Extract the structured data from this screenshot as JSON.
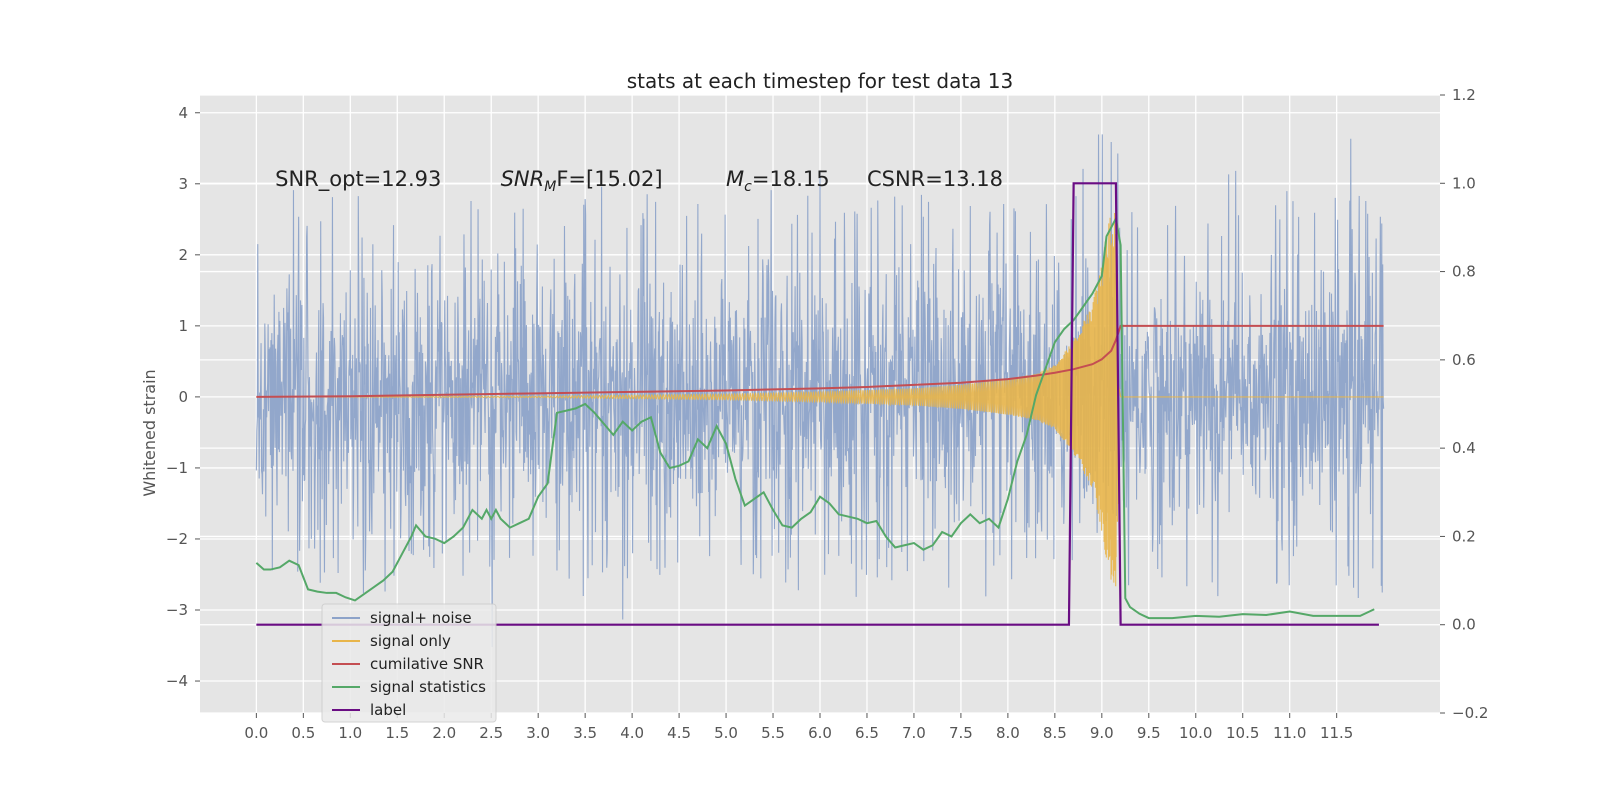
{
  "chart_data": {
    "type": "line",
    "title": "stats at each timestep for test data 13",
    "xlabel": "",
    "ylabel": "Whitened strain",
    "xlim": [
      -0.6,
      12.6
    ],
    "ylim": [
      -4.45,
      4.25
    ],
    "y2lim": [
      -0.2,
      1.2
    ],
    "x_ticks": [
      "0.0",
      "0.5",
      "1.0",
      "1.5",
      "2.0",
      "2.5",
      "3.0",
      "3.5",
      "4.0",
      "4.5",
      "5.0",
      "5.5",
      "6.0",
      "6.5",
      "7.0",
      "7.5",
      "8.0",
      "8.5",
      "9.0",
      "9.5",
      "10.0",
      "10.5",
      "11.0",
      "11.5"
    ],
    "y_ticks": [
      "−4",
      "−3",
      "−2",
      "−1",
      "0",
      "1",
      "2",
      "3",
      "4"
    ],
    "y2_ticks": [
      "−0.2",
      "0.0",
      "0.2",
      "0.4",
      "0.6",
      "0.8",
      "1.0",
      "1.2"
    ],
    "grid": true,
    "legend_position": "lower-left",
    "annotations": [
      {
        "text": "SNR_opt=12.93",
        "x": 0.2,
        "y": 3.0
      },
      {
        "base": "SNR",
        "sub": "M",
        "rest": "F=[15.02]",
        "x": 2.6,
        "y": 3.0
      },
      {
        "base": "M",
        "sub": "c",
        "rest": "=18.15",
        "x": 5.0,
        "y": 3.0
      },
      {
        "text": "CSNR=13.18",
        "x": 6.5,
        "y": 3.0
      }
    ],
    "series": [
      {
        "name": "signal+ noise",
        "axis": "left",
        "color": "#8da3c9",
        "x_range": [
          0.0,
          12.0
        ],
        "envelope_upper": [
          2.3,
          2.6,
          2.5,
          2.3,
          2.5,
          2.4,
          2.5,
          2.6,
          2.5,
          2.5,
          2.4,
          2.7,
          2.5,
          2.6,
          2.5,
          2.4,
          2.5,
          2.6,
          3.3,
          2.6,
          2.5,
          2.8,
          2.6,
          2.5,
          2.3
        ],
        "envelope_lower": [
          -2.4,
          -2.5,
          -2.6,
          -2.4,
          -2.3,
          -2.5,
          -2.4,
          -2.6,
          -2.4,
          -2.5,
          -2.4,
          -2.3,
          -2.4,
          -2.5,
          -2.3,
          -2.4,
          -2.5,
          -2.4,
          -3.3,
          -2.5,
          -2.6,
          -2.5,
          -2.4,
          -2.5,
          -2.4
        ],
        "noise_std": 1.0
      },
      {
        "name": "signal only",
        "axis": "left",
        "color": "#e8b54a",
        "x": [
          0.0,
          3.0,
          5.0,
          6.0,
          7.0,
          7.5,
          8.0,
          8.3,
          8.5,
          8.7,
          8.9,
          9.0,
          9.05,
          9.1,
          9.15,
          9.2,
          12.0
        ],
        "amplitude": [
          0.0,
          0.01,
          0.04,
          0.07,
          0.12,
          0.17,
          0.25,
          0.33,
          0.45,
          0.8,
          1.3,
          1.9,
          2.3,
          2.6,
          2.7,
          0.0,
          0.0
        ]
      },
      {
        "name": "cumilative SNR",
        "axis": "left",
        "color": "#c44e52",
        "x": [
          0.0,
          1.0,
          2.0,
          3.0,
          4.0,
          5.0,
          6.0,
          6.5,
          7.0,
          7.5,
          8.0,
          8.3,
          8.5,
          8.7,
          8.9,
          9.0,
          9.1,
          9.15,
          9.2,
          12.0
        ],
        "y": [
          0.0,
          0.01,
          0.03,
          0.05,
          0.07,
          0.09,
          0.12,
          0.14,
          0.17,
          0.2,
          0.25,
          0.3,
          0.34,
          0.39,
          0.46,
          0.53,
          0.65,
          0.8,
          1.0,
          1.0
        ]
      },
      {
        "name": "signal statistics",
        "axis": "right",
        "color": "#55a868",
        "x": [
          0.0,
          0.08,
          0.15,
          0.25,
          0.35,
          0.45,
          0.55,
          0.65,
          0.75,
          0.85,
          0.95,
          1.05,
          1.15,
          1.25,
          1.35,
          1.45,
          1.55,
          1.65,
          1.7,
          1.8,
          1.9,
          2.0,
          2.1,
          2.2,
          2.3,
          2.4,
          2.45,
          2.5,
          2.55,
          2.6,
          2.7,
          2.8,
          2.9,
          3.0,
          3.1,
          3.2,
          3.3,
          3.4,
          3.5,
          3.6,
          3.7,
          3.8,
          3.9,
          4.0,
          4.1,
          4.2,
          4.3,
          4.4,
          4.5,
          4.6,
          4.7,
          4.8,
          4.9,
          5.0,
          5.1,
          5.2,
          5.3,
          5.4,
          5.5,
          5.6,
          5.7,
          5.8,
          5.9,
          6.0,
          6.1,
          6.2,
          6.3,
          6.4,
          6.5,
          6.6,
          6.7,
          6.8,
          6.9,
          7.0,
          7.1,
          7.2,
          7.3,
          7.4,
          7.5,
          7.6,
          7.7,
          7.8,
          7.9,
          8.0,
          8.1,
          8.2,
          8.3,
          8.4,
          8.5,
          8.6,
          8.7,
          8.8,
          8.9,
          9.0,
          9.05,
          9.1,
          9.15,
          9.2,
          9.25,
          9.3,
          9.4,
          9.5,
          9.75,
          10.0,
          10.25,
          10.5,
          10.75,
          11.0,
          11.25,
          11.5,
          11.75,
          11.9
        ],
        "y": [
          0.14,
          0.125,
          0.125,
          0.13,
          0.145,
          0.135,
          0.08,
          0.075,
          0.072,
          0.072,
          0.062,
          0.055,
          0.07,
          0.085,
          0.1,
          0.12,
          0.16,
          0.2,
          0.225,
          0.2,
          0.195,
          0.185,
          0.2,
          0.22,
          0.26,
          0.24,
          0.26,
          0.24,
          0.26,
          0.24,
          0.22,
          0.23,
          0.24,
          0.29,
          0.32,
          0.48,
          0.485,
          0.49,
          0.5,
          0.48,
          0.455,
          0.43,
          0.46,
          0.44,
          0.46,
          0.47,
          0.39,
          0.355,
          0.36,
          0.37,
          0.42,
          0.4,
          0.45,
          0.41,
          0.33,
          0.27,
          0.285,
          0.3,
          0.26,
          0.225,
          0.22,
          0.24,
          0.255,
          0.29,
          0.275,
          0.25,
          0.245,
          0.24,
          0.23,
          0.235,
          0.2,
          0.175,
          0.18,
          0.185,
          0.17,
          0.18,
          0.21,
          0.2,
          0.23,
          0.25,
          0.23,
          0.24,
          0.22,
          0.285,
          0.37,
          0.43,
          0.52,
          0.58,
          0.64,
          0.67,
          0.69,
          0.72,
          0.75,
          0.79,
          0.88,
          0.9,
          0.92,
          0.86,
          0.06,
          0.04,
          0.025,
          0.015,
          0.015,
          0.02,
          0.018,
          0.024,
          0.022,
          0.03,
          0.02,
          0.02,
          0.02,
          0.035
        ]
      },
      {
        "name": "label",
        "axis": "right",
        "color": "#6a0d83",
        "x": [
          0.0,
          8.65,
          8.7,
          9.15,
          9.2,
          11.95
        ],
        "y": [
          0.0,
          0.0,
          1.0,
          1.0,
          0.0,
          0.0
        ]
      }
    ],
    "legend": [
      {
        "label": "signal+ noise",
        "color": "#8da3c9"
      },
      {
        "label": "signal only",
        "color": "#e8b54a"
      },
      {
        "label": "cumilative SNR",
        "color": "#c44e52"
      },
      {
        "label": "signal statistics",
        "color": "#55a868"
      },
      {
        "label": "label",
        "color": "#6a0d83"
      }
    ]
  }
}
